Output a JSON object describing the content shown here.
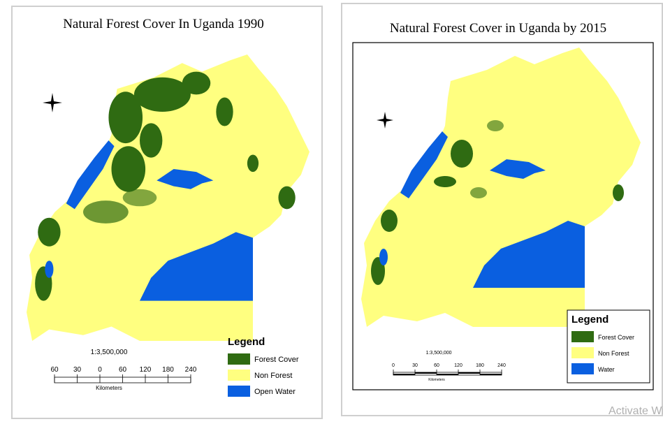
{
  "maps": [
    {
      "title": "Natural Forest Cover In Uganda 1990",
      "legend": {
        "title": "Legend",
        "items": [
          {
            "label": "Forest Cover",
            "color": "#2f6b12"
          },
          {
            "label": "Non Forest",
            "color": "#ffff80"
          },
          {
            "label": "Open Water",
            "color": "#0a5fe0"
          }
        ]
      },
      "scale": {
        "ratio": "1:3,500,000",
        "ticks": [
          "60",
          "30",
          "0",
          "60",
          "120",
          "180",
          "240"
        ],
        "unit": "Kilometers"
      }
    },
    {
      "title": "Natural Forest Cover in Uganda by 2015",
      "legend": {
        "title": "Legend",
        "items": [
          {
            "label": "Forest Cover",
            "color": "#2f6b12"
          },
          {
            "label": "Non Forest",
            "color": "#ffff80"
          },
          {
            "label": "Water",
            "color": "#0a5fe0"
          }
        ]
      },
      "scale": {
        "ratio": "1:3,500,000",
        "ticks": [
          "0",
          "30",
          "60",
          "120",
          "180",
          "240"
        ],
        "unit": "Kilometers"
      }
    }
  ],
  "watermark": "Activate Windows"
}
